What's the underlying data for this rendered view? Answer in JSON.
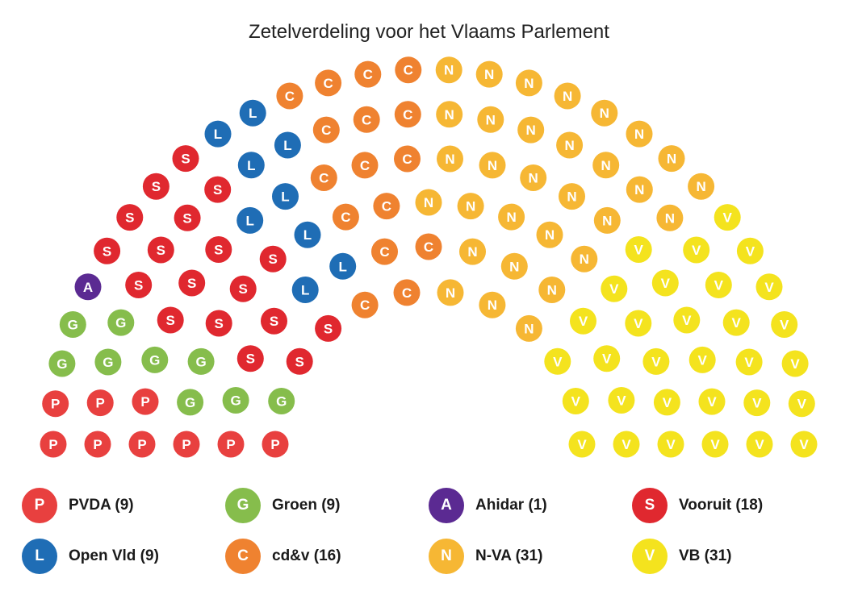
{
  "chart_data": {
    "type": "parliament",
    "title": "Zetelverdeling voor het Vlaams Parlement",
    "total_seats": 124,
    "parties": [
      {
        "name": "PVDA",
        "letter": "P",
        "seats": 9,
        "color": "#e8403f",
        "legend": "PVDA (9)"
      },
      {
        "name": "Groen",
        "letter": "G",
        "seats": 9,
        "color": "#86bd4c",
        "legend": "Groen (9)"
      },
      {
        "name": "Ahidar",
        "letter": "A",
        "seats": 1,
        "color": "#5b2a92",
        "legend": "Ahidar (1)"
      },
      {
        "name": "Vooruit",
        "letter": "S",
        "seats": 18,
        "color": "#e0282f",
        "legend": "Vooruit (18)"
      },
      {
        "name": "Open Vld",
        "letter": "L",
        "seats": 9,
        "color": "#1f6db5",
        "legend": "Open Vld (9)"
      },
      {
        "name": "cd&v",
        "letter": "C",
        "seats": 16,
        "color": "#ef8230",
        "legend": "cd&v (16)"
      },
      {
        "name": "N-VA",
        "letter": "N",
        "seats": 31,
        "color": "#f6b734",
        "legend": "N-VA (31)"
      },
      {
        "name": "VB",
        "letter": "V",
        "seats": 31,
        "color": "#f4e31e",
        "legend": "VB (31)"
      }
    ]
  }
}
